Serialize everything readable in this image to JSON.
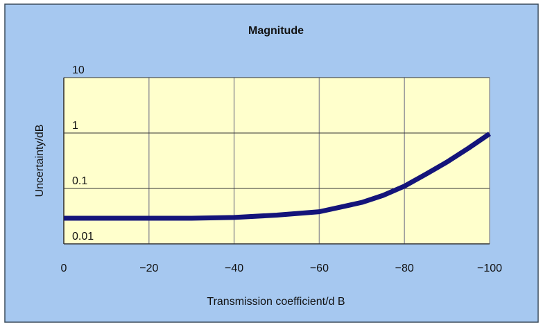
{
  "chart_data": {
    "type": "line",
    "title": "Magnitude",
    "x_label": "Transmission coefficient/d B",
    "y_label": "Uncertainty/dB",
    "x": [
      0,
      -10,
      -20,
      -30,
      -40,
      -50,
      -60,
      -65,
      -70,
      -75,
      -80,
      -85,
      -90,
      -95,
      -100
    ],
    "series": [
      {
        "name": "Magnitude",
        "color": "#14147a",
        "values": [
          0.029,
          0.029,
          0.029,
          0.029,
          0.03,
          0.033,
          0.038,
          0.046,
          0.056,
          0.075,
          0.11,
          0.18,
          0.3,
          0.53,
          0.97
        ]
      }
    ],
    "xlim": [
      0,
      -100
    ],
    "xticks": [
      0,
      {
        "value": -20,
        "label": "−20"
      },
      {
        "value": -40,
        "label": "−40"
      },
      {
        "value": -60,
        "label": "−60"
      },
      {
        "value": -80,
        "label": "−80"
      },
      {
        "value": -100,
        "label": "−100"
      }
    ],
    "ylim": [
      0.01,
      10
    ],
    "yticks": [
      0.01,
      0.1,
      1,
      10
    ],
    "log_y": true,
    "grid": true
  }
}
